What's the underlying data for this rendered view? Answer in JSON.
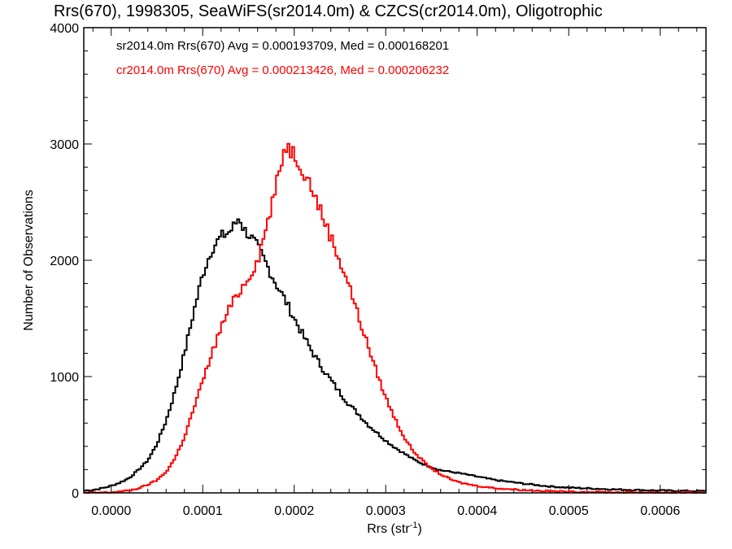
{
  "chart_data": {
    "type": "line",
    "title": "Rrs(670), 1998305, SeaWiFS(sr2014.0m) & CZCS(cr2014.0m), Oligotrophic",
    "xlabel_main": "Rrs (str",
    "xlabel_sup": "-1",
    "xlabel_end": ")",
    "ylabel": "Number of Observations",
    "xlim": [
      -3e-05,
      0.00065
    ],
    "ylim": [
      0,
      4000
    ],
    "xticks": [
      0.0,
      0.0001,
      0.0002,
      0.0003,
      0.0004,
      0.0005,
      0.0006
    ],
    "xtick_labels": [
      "0.0000",
      "0.0001",
      "0.0002",
      "0.0003",
      "0.0004",
      "0.0005",
      "0.0006"
    ],
    "yticks": [
      0,
      1000,
      2000,
      3000,
      4000
    ],
    "ytick_labels": [
      "0",
      "1000",
      "2000",
      "3000",
      "4000"
    ],
    "grid": false,
    "legend_placement": "top-left",
    "series": [
      {
        "name": "sr2014.0m Rrs(670) Avg = 0.000193709, Med = 0.000168201",
        "color": "#000000",
        "x": [
          -3e-05,
          -2e-05,
          -1e-05,
          0.0,
          1e-05,
          2e-05,
          3e-05,
          4e-05,
          5e-05,
          6e-05,
          7e-05,
          8e-05,
          9e-05,
          0.0001,
          0.00011,
          0.00012,
          0.00013,
          0.000135,
          0.00014,
          0.000145,
          0.00015,
          0.00016,
          0.00017,
          0.00018,
          0.00019,
          0.0002,
          0.00021,
          0.00022,
          0.00023,
          0.00024,
          0.00025,
          0.00026,
          0.00027,
          0.00028,
          0.00029,
          0.0003,
          0.00031,
          0.00032,
          0.00033,
          0.00034,
          0.00035,
          0.00036,
          0.00038,
          0.0004,
          0.00042,
          0.00045,
          0.00048,
          0.0005,
          0.00055,
          0.0006,
          0.00065
        ],
        "y": [
          20,
          25,
          40,
          60,
          90,
          130,
          200,
          280,
          420,
          620,
          880,
          1200,
          1550,
          1880,
          2100,
          2200,
          2250,
          2300,
          2380,
          2260,
          2230,
          2110,
          1960,
          1800,
          1660,
          1500,
          1350,
          1210,
          1080,
          970,
          860,
          760,
          680,
          590,
          520,
          450,
          390,
          340,
          290,
          250,
          220,
          195,
          170,
          140,
          110,
          80,
          55,
          45,
          30,
          20,
          15
        ]
      },
      {
        "name": "cr2014.0m Rrs(670) Avg = 0.000213426, Med = 0.000206232",
        "color": "#ff0000",
        "x": [
          -3e-05,
          0.0,
          2e-05,
          3e-05,
          4e-05,
          5e-05,
          6e-05,
          7e-05,
          8e-05,
          9e-05,
          0.0001,
          0.00011,
          0.00012,
          0.00013,
          0.00014,
          0.00015,
          0.00016,
          0.00017,
          0.00018,
          0.000185,
          0.00019,
          0.000195,
          0.0002,
          0.00021,
          0.00022,
          0.00023,
          0.00024,
          0.00025,
          0.00026,
          0.00027,
          0.00028,
          0.00029,
          0.0003,
          0.00031,
          0.00032,
          0.00033,
          0.00034,
          0.00035,
          0.00036,
          0.00037,
          0.00038,
          0.0004,
          0.00042,
          0.00045,
          0.00048,
          0.0005,
          0.00055,
          0.0006,
          0.00065
        ],
        "y": [
          0,
          5,
          20,
          40,
          70,
          110,
          180,
          300,
          480,
          720,
          960,
          1200,
          1420,
          1600,
          1730,
          1850,
          2000,
          2300,
          2620,
          2800,
          3000,
          2960,
          2920,
          2780,
          2610,
          2400,
          2200,
          1990,
          1790,
          1520,
          1280,
          1040,
          820,
          640,
          480,
          360,
          280,
          210,
          160,
          120,
          90,
          60,
          40,
          25,
          15,
          10,
          5,
          3,
          2
        ]
      }
    ]
  }
}
